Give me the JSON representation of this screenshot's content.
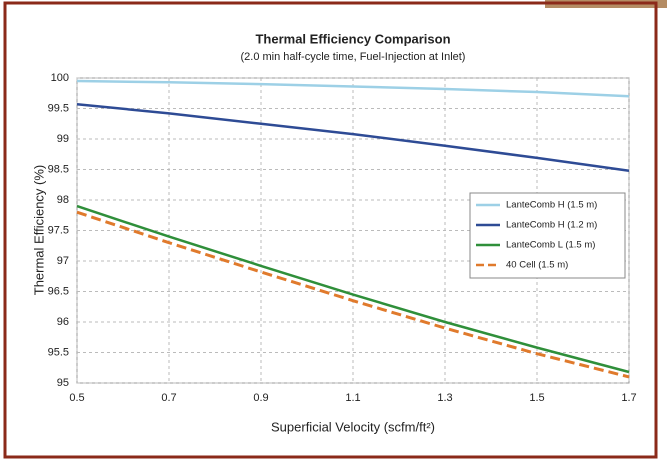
{
  "chart_data": {
    "type": "line",
    "title": "Thermal Efficiency Comparison",
    "subtitle": "(2.0 min half-cycle time, Fuel-Injection at Inlet)",
    "x_label": "Superficial Velocity (scfm/ft²)",
    "y_label": "Thermal Efficiency (%)",
    "x": [
      0.5,
      0.7,
      0.9,
      1.1,
      1.3,
      1.5,
      1.7
    ],
    "series": [
      {
        "name": "LanteComb H (1.5 m)",
        "color": "#9dd0e6",
        "values": [
          99.95,
          99.93,
          99.9,
          99.86,
          99.82,
          99.77,
          99.7
        ]
      },
      {
        "name": "LanteComb H (1.2 m)",
        "color": "#2e4b95",
        "values": [
          99.57,
          99.42,
          99.25,
          99.08,
          98.89,
          98.69,
          98.48
        ]
      },
      {
        "name": "LanteComb L (1.5 m)",
        "color": "#2f8f3a",
        "values": [
          97.9,
          97.4,
          96.92,
          96.45,
          96.0,
          95.58,
          95.18
        ]
      },
      {
        "name": "40 Cell (1.5 m)",
        "color": "#e07a2c",
        "dashed": true,
        "values": [
          97.8,
          97.3,
          96.82,
          96.35,
          95.9,
          95.48,
          95.1
        ]
      }
    ],
    "xlim": [
      0.5,
      1.7
    ],
    "xticks": [
      0.5,
      0.7,
      0.9,
      1.1,
      1.3,
      1.5,
      1.7
    ],
    "ylim": [
      95,
      100
    ],
    "yticks": [
      95,
      95.5,
      96,
      96.5,
      97,
      97.5,
      98,
      98.5,
      99,
      99.5,
      100
    ],
    "grid": true,
    "legend": "right"
  }
}
